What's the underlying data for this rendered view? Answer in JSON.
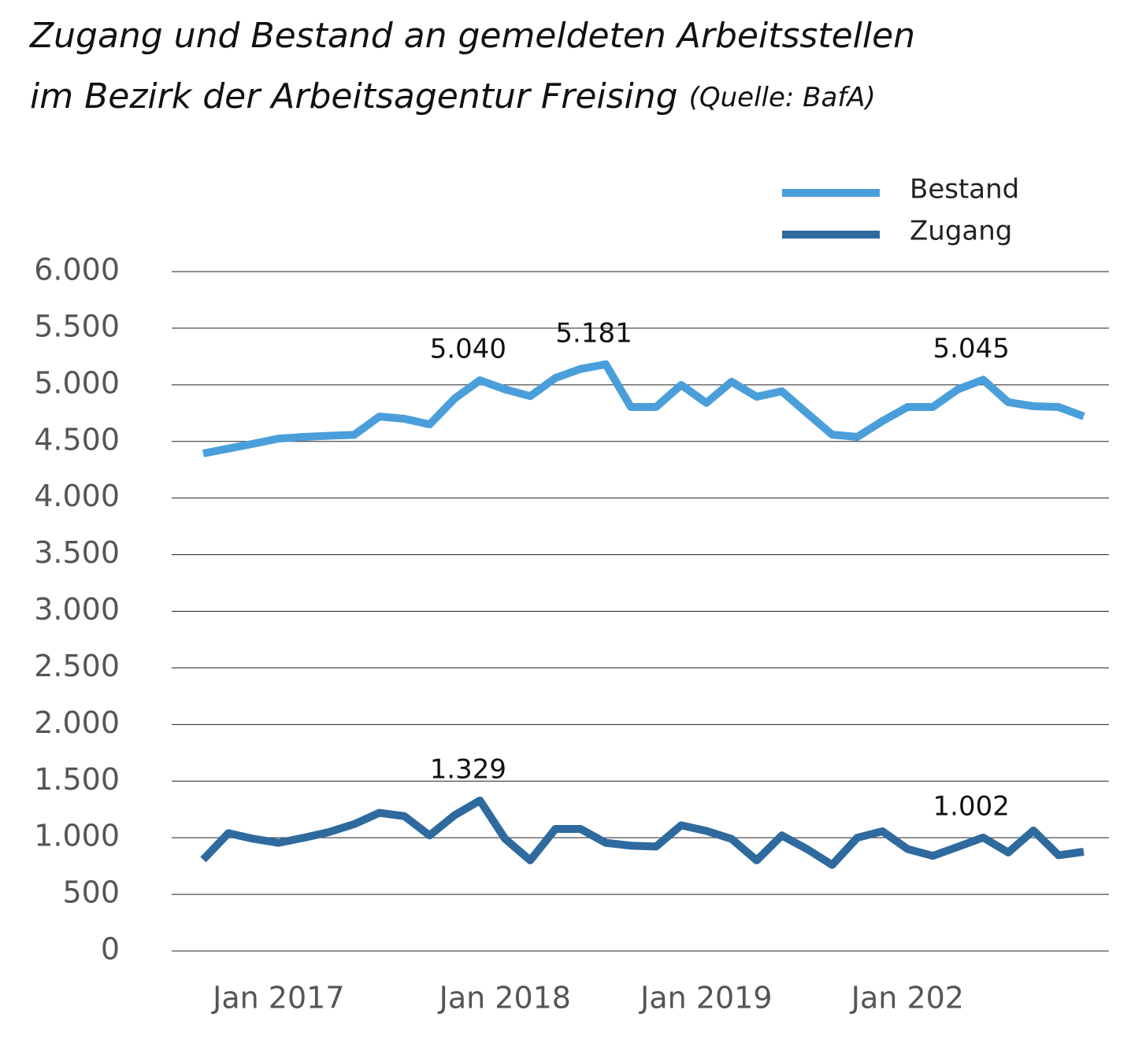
{
  "chart_data": {
    "type": "line",
    "title": [
      "Zugang und Bestand an gemeldeten Arbeitsstellen",
      "im Bezirk der Arbeitsagentur Freising"
    ],
    "source": "(Quelle: BafA)",
    "categories": [
      null,
      null,
      null,
      "Jan 2017",
      null,
      null,
      null,
      null,
      null,
      null,
      null,
      null,
      "Jan 2018",
      null,
      null,
      null,
      null,
      null,
      null,
      null,
      "Jan 2019",
      null,
      null,
      null,
      null,
      null,
      null,
      null,
      "Jan 202",
      null,
      null,
      null,
      null,
      null,
      null,
      null
    ],
    "series": [
      {
        "name": "Bestand",
        "color": "#4a9fdb",
        "values": [
          4394,
          4437,
          4480,
          4525,
          4540,
          4550,
          4558,
          4720,
          4700,
          4650,
          4880,
          5040,
          4960,
          4900,
          5060,
          5140,
          5181,
          4804,
          4804,
          4999,
          4840,
          5027,
          4895,
          4943,
          4750,
          4560,
          4540,
          4680,
          4804,
          4804,
          4960,
          5045,
          4846,
          4811,
          4804,
          4721
        ],
        "value_labels": [
          null,
          null,
          null,
          null,
          null,
          null,
          null,
          null,
          null,
          null,
          null,
          "5.040",
          null,
          null,
          null,
          null,
          "5.181",
          null,
          null,
          null,
          null,
          null,
          null,
          null,
          null,
          null,
          null,
          null,
          null,
          null,
          null,
          "5.045",
          null,
          null,
          null,
          null
        ]
      },
      {
        "name": "Zugang",
        "color": "#2e6a9e",
        "values": [
          807,
          1040,
          990,
          955,
          1000,
          1050,
          1120,
          1220,
          1190,
          1020,
          1200,
          1329,
          990,
          800,
          1078,
          1078,
          955,
          930,
          922,
          1110,
          1060,
          990,
          800,
          1020,
          900,
          760,
          1000,
          1057,
          900,
          840,
          920,
          1002,
          870,
          1064,
          845,
          876
        ],
        "value_labels": [
          null,
          null,
          null,
          null,
          null,
          null,
          null,
          null,
          null,
          null,
          null,
          "1.329",
          null,
          null,
          null,
          null,
          null,
          null,
          null,
          null,
          null,
          null,
          null,
          null,
          null,
          null,
          null,
          null,
          null,
          null,
          null,
          "1.002",
          null,
          null,
          null,
          null
        ]
      }
    ],
    "ylim": [
      0,
      6000
    ],
    "yticks": [
      0,
      500,
      {
        "value": 1000,
        "label": "1.000"
      },
      {
        "value": 1500,
        "label": "1.500"
      },
      {
        "value": 2000,
        "label": "2.000"
      },
      {
        "value": 2500,
        "label": "2.500"
      },
      {
        "value": 3000,
        "label": "3.000"
      },
      {
        "value": 3500,
        "label": "3.500"
      },
      {
        "value": 4000,
        "label": "4.000"
      },
      {
        "value": 4500,
        "label": "4.500"
      },
      {
        "value": 5000,
        "label": "5.000"
      },
      {
        "value": 5500,
        "label": "5.500"
      },
      {
        "value": 6000,
        "label": "6.000"
      }
    ],
    "grid": true,
    "legend": "top-right"
  }
}
